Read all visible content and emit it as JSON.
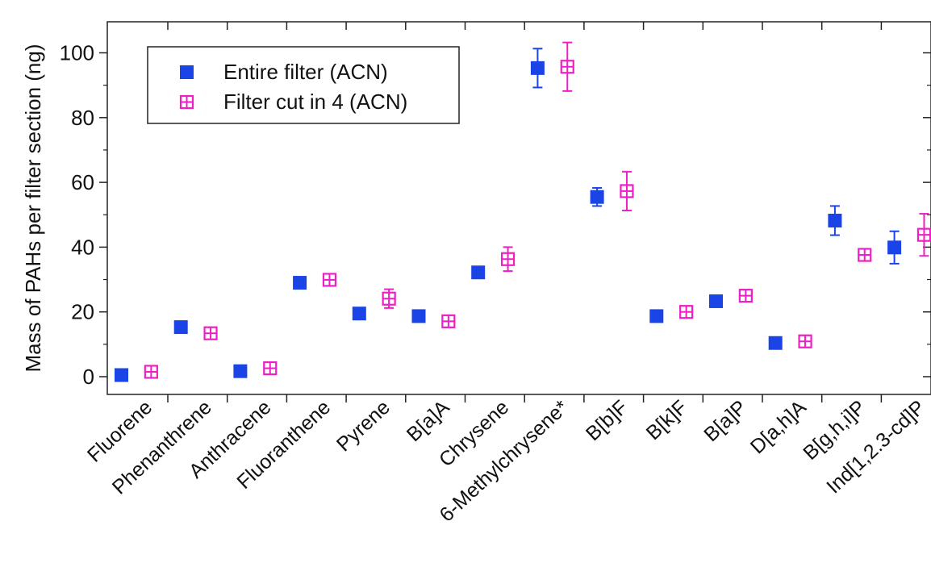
{
  "chart_data": {
    "type": "scatter",
    "ylabel": "Mass of PAHs per filter section (ng)",
    "ylim": [
      -5,
      110
    ],
    "yticks": [
      0,
      20,
      40,
      60,
      80,
      100
    ],
    "categories": [
      "Fluorene",
      "Phenanthrene",
      "Anthracene",
      "Fluoranthene",
      "Pyrene",
      "B[a]A",
      "Chrysene",
      "6-Methylchrysene*",
      "B[b]F",
      "B[k]F",
      "B[a]P",
      "D[a,h]A",
      "B[g,h,i]P",
      "Ind[1,2.3-cd]P"
    ],
    "legend_position": "top-left",
    "series": [
      {
        "name": "Entire filter (ACN)",
        "color": "#1a44e6",
        "marker": "filled-square",
        "values": [
          0.5,
          15.3,
          1.7,
          29.0,
          19.5,
          18.7,
          32.2,
          95.3,
          55.5,
          18.7,
          23.3,
          10.4,
          48.2,
          39.9
        ],
        "errors": [
          0.2,
          0.8,
          0.3,
          1.5,
          0.8,
          0.7,
          0.9,
          6.0,
          2.8,
          0.6,
          0.8,
          0.5,
          4.5,
          5.0
        ]
      },
      {
        "name": "Filter cut in 4 (ACN)",
        "color": "#ee1fc4",
        "marker": "hatched-square",
        "values": [
          1.5,
          13.4,
          2.6,
          29.9,
          24.1,
          17.1,
          36.3,
          95.7,
          57.3,
          20.0,
          25.0,
          10.9,
          37.6,
          43.8
        ],
        "errors": [
          0.3,
          0.9,
          0.4,
          1.4,
          2.9,
          0.7,
          3.7,
          7.5,
          6.0,
          0.7,
          1.0,
          0.5,
          0.8,
          6.5
        ]
      }
    ]
  }
}
